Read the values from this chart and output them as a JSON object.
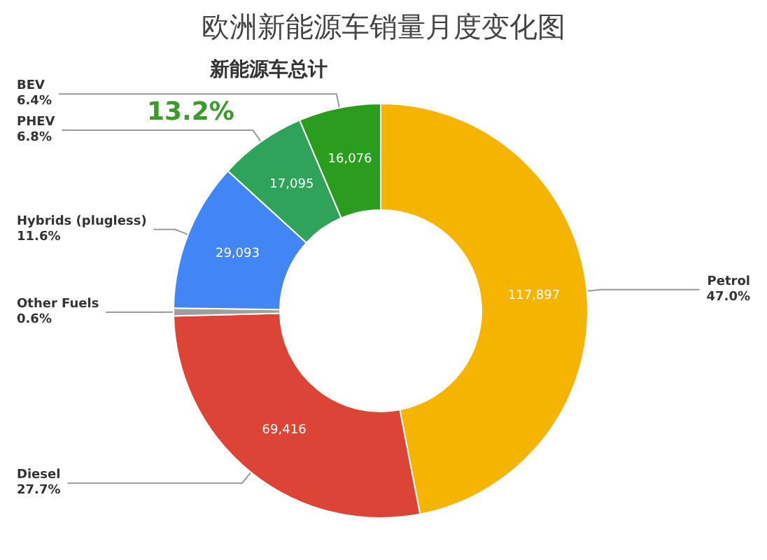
{
  "chart_data": {
    "type": "donut",
    "title": "欧洲新能源车销量月度变化图",
    "categories": [
      "Petrol\n47.0%",
      "Diesel\n27.7%",
      "Other Fuels\n0.6%",
      "Hybrids (plugless)\n11.6%",
      "PHEV\n6.8%",
      "BEV\n6.4%"
    ],
    "values": [
      117897,
      69416,
      1500,
      29093,
      17095,
      16076
    ],
    "value_labels": [
      "117,897",
      "69,416",
      null,
      "29,093",
      "17,095",
      "16,076"
    ],
    "colors": [
      "#f4b400",
      "#db4437",
      "#9e9e9e",
      "#4285f4",
      "#2fa35a",
      "#2a9d1f"
    ],
    "annotations": [
      "新能源车总计",
      "13.2%"
    ],
    "legend": false
  }
}
